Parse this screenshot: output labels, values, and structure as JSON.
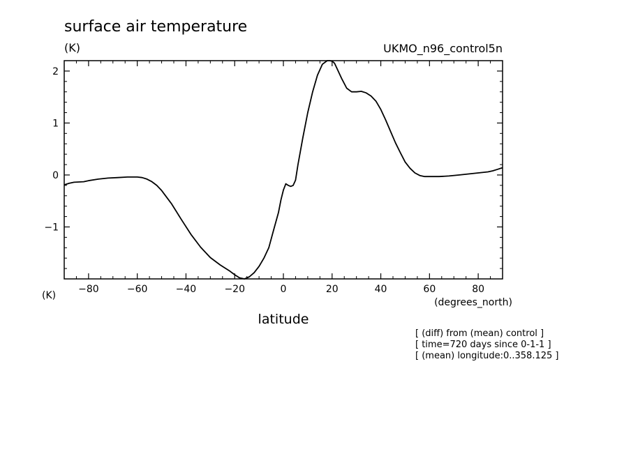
{
  "chart_data": {
    "type": "line",
    "title": "surface air temperature",
    "units_top": "(K)",
    "model_label": "UKMO_n96_control5n",
    "units_axis": "(K)",
    "xunit": "(degrees_north)",
    "xlabel": "latitude",
    "notes": [
      "[ (diff) from (mean) control ]",
      "[ time=720 days since 0-1-1 ]",
      "[ (mean) longitude:0..358.125 ]"
    ],
    "xlim": [
      -90,
      90
    ],
    "ylim": [
      -2,
      2.2
    ],
    "xticks": [
      -80,
      -60,
      -40,
      -20,
      0,
      20,
      40,
      60,
      80
    ],
    "xtick_labels": [
      "−80",
      "−60",
      "−40",
      "−20",
      "0",
      "20",
      "40",
      "60",
      "80"
    ],
    "yticks": [
      -1,
      0,
      1,
      2
    ],
    "ytick_labels": [
      "−1",
      "0",
      "1",
      "2"
    ],
    "grid": false,
    "series": [
      {
        "x": [
          -90,
          -88,
          -86,
          -82,
          -80,
          -76,
          -72,
          -68,
          -64,
          -60,
          -58,
          -56,
          -54,
          -52,
          -50,
          -46,
          -42,
          -38,
          -34,
          -30,
          -26,
          -22,
          -20,
          -18,
          -16,
          -14,
          -12,
          -10,
          -8,
          -6,
          -4,
          -2,
          -1,
          0,
          1,
          2,
          3,
          4,
          5,
          6,
          8,
          10,
          12,
          14,
          16,
          18,
          19,
          20,
          21,
          22,
          24,
          26,
          28,
          30,
          32,
          34,
          36,
          38,
          40,
          42,
          44,
          46,
          48,
          50,
          52,
          54,
          56,
          58,
          60,
          62,
          64,
          68,
          72,
          76,
          80,
          84,
          86,
          88,
          90
        ],
        "y": [
          -0.19,
          -0.16,
          -0.14,
          -0.13,
          -0.11,
          -0.08,
          -0.06,
          -0.05,
          -0.04,
          -0.04,
          -0.05,
          -0.08,
          -0.13,
          -0.2,
          -0.3,
          -0.55,
          -0.85,
          -1.14,
          -1.39,
          -1.59,
          -1.73,
          -1.85,
          -1.92,
          -1.98,
          -2.0,
          -1.96,
          -1.88,
          -1.76,
          -1.6,
          -1.4,
          -1.06,
          -0.72,
          -0.48,
          -0.29,
          -0.17,
          -0.2,
          -0.22,
          -0.2,
          -0.1,
          0.2,
          0.72,
          1.2,
          1.6,
          1.92,
          2.13,
          2.2,
          2.2,
          2.19,
          2.15,
          2.05,
          1.85,
          1.67,
          1.6,
          1.6,
          1.61,
          1.58,
          1.52,
          1.42,
          1.26,
          1.06,
          0.84,
          0.62,
          0.43,
          0.25,
          0.13,
          0.04,
          -0.01,
          -0.03,
          -0.03,
          -0.03,
          -0.03,
          -0.02,
          0.0,
          0.02,
          0.04,
          0.06,
          0.08,
          0.11,
          0.14
        ]
      }
    ]
  }
}
